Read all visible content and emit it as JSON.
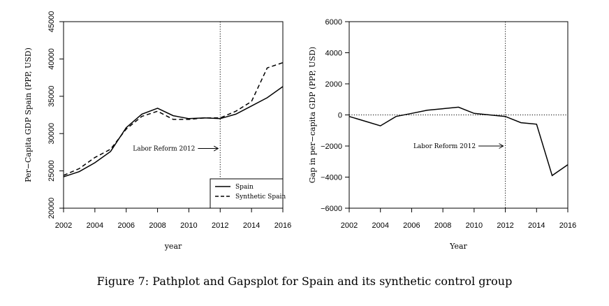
{
  "caption": "Figure 7: Pathplot and Gapsplot for Spain and its synthetic control group",
  "chart_data": [
    {
      "type": "line",
      "title": "",
      "xlabel": "year",
      "ylabel": "Per−Capita GDP Spain (PPP, USD)",
      "xlim": [
        2002,
        2016
      ],
      "ylim": [
        20000,
        45000
      ],
      "xticks": [
        2002,
        2004,
        2006,
        2008,
        2010,
        2012,
        2014,
        2016
      ],
      "yticks": [
        20000,
        25000,
        30000,
        35000,
        40000,
        45000
      ],
      "x": [
        2002,
        2003,
        2004,
        2005,
        2006,
        2007,
        2008,
        2009,
        2010,
        2011,
        2012,
        2013,
        2014,
        2015,
        2016
      ],
      "series": [
        {
          "name": "Spain",
          "style": "solid",
          "values": [
            24200,
            24900,
            26100,
            27600,
            30800,
            32600,
            33400,
            32400,
            32000,
            32100,
            32000,
            32600,
            33700,
            34800,
            36300
          ]
        },
        {
          "name": "Synthetic Spain",
          "style": "dashed",
          "values": [
            24400,
            25300,
            26800,
            27900,
            30600,
            32300,
            33000,
            31900,
            31900,
            32100,
            32100,
            33000,
            34300,
            38800,
            39500
          ]
        }
      ],
      "vline": 2012,
      "vline_style": "dotted",
      "annotation": {
        "text": "Labor Reform 2012",
        "x": 2010.4,
        "y": 28000
      },
      "legend_position": "bottom-right",
      "grid": false
    },
    {
      "type": "line",
      "title": "",
      "xlabel": "Year",
      "ylabel": "Gap in per−capita GDP (PPP, USD)",
      "xlim": [
        2002,
        2016
      ],
      "ylim": [
        -6000,
        6000
      ],
      "xticks": [
        2002,
        2004,
        2006,
        2008,
        2010,
        2012,
        2014,
        2016
      ],
      "yticks": [
        -6000,
        -4000,
        -2000,
        0,
        2000,
        4000,
        6000
      ],
      "ytick_labels": [
        "−6000",
        "−4000",
        "−2000",
        "0",
        "2000",
        "4000",
        "6000"
      ],
      "x": [
        2002,
        2003,
        2004,
        2005,
        2006,
        2007,
        2008,
        2009,
        2010,
        2011,
        2012,
        2013,
        2014,
        2015,
        2016
      ],
      "series": [
        {
          "style": "solid",
          "values": [
            -100,
            -400,
            -700,
            -100,
            100,
            300,
            400,
            500,
            100,
            0,
            -100,
            -500,
            -600,
            -3900,
            -3200
          ]
        }
      ],
      "vline": 2012,
      "vline_style": "dotted",
      "hline": 0,
      "hline_style": "dotted",
      "annotation": {
        "text": "Labor Reform 2012",
        "x": 2010.1,
        "y": -2000
      },
      "grid": false
    }
  ]
}
